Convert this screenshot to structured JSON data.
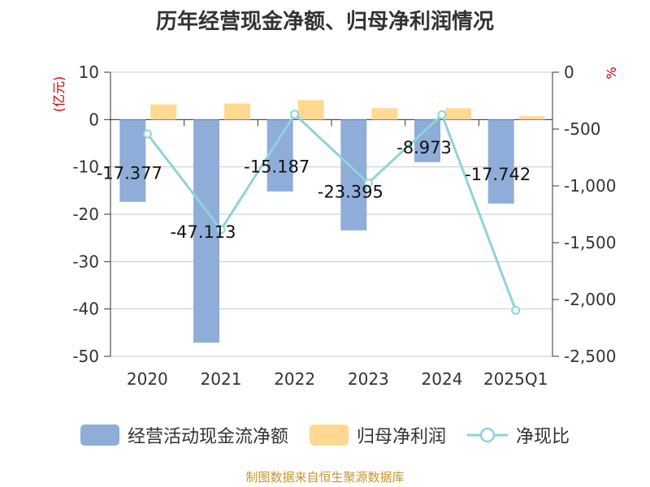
{
  "chart_data": {
    "type": "bar",
    "title": "历年经营现金净额、归母净利润情况",
    "categories": [
      "2020",
      "2021",
      "2022",
      "2023",
      "2024",
      "2025Q1"
    ],
    "series": [
      {
        "name": "经营活动现金流净额",
        "type": "bar",
        "axis": "left",
        "color": "#8eadd9",
        "values": [
          -17.377,
          -47.113,
          -15.187,
          -23.395,
          -8.973,
          -17.742
        ],
        "labels": [
          "-17.377",
          "-47.113",
          "-15.187",
          "-23.395",
          "-8.973",
          "-17.742"
        ]
      },
      {
        "name": "归母净利润",
        "type": "bar",
        "axis": "left",
        "color": "#ffd991",
        "values": [
          3.2,
          3.4,
          4.1,
          2.4,
          2.4,
          0.7
        ]
      },
      {
        "name": "净现比",
        "type": "line",
        "axis": "right",
        "color": "#8fd3d9",
        "values": [
          -543,
          -1385,
          -370,
          -975,
          -374,
          -2095
        ]
      }
    ],
    "ylabel_left": "(亿元)",
    "ylabel_right": "%",
    "ylim_left": [
      -50,
      10
    ],
    "yticks_left": [
      "10",
      "0",
      "-10",
      "-20",
      "-30",
      "-40",
      "-50"
    ],
    "ylim_right": [
      -2500,
      0
    ],
    "yticks_right": [
      "0",
      "-500",
      "-1,000",
      "-1,500",
      "-2,000",
      "-2,500"
    ],
    "grid": true,
    "legend_position": "bottom"
  },
  "legend": {
    "items": [
      "经营活动现金流净额",
      "归母净利润",
      "净现比"
    ]
  },
  "source": "制图数据来自恒生聚源数据库"
}
